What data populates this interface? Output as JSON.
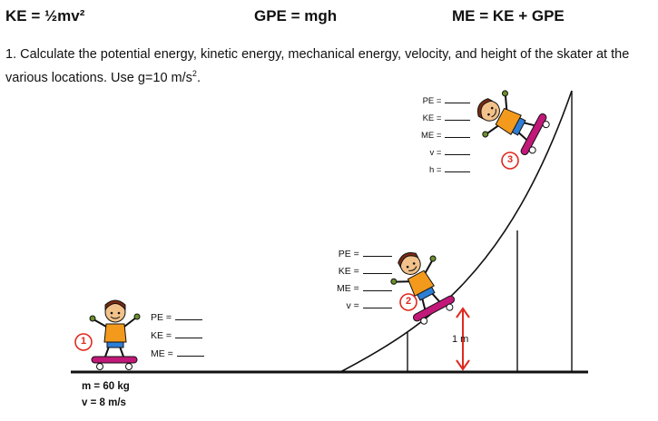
{
  "formulas": {
    "ke": "KE = ½mv²",
    "gpe": "GPE = mgh",
    "me": "ME = KE + GPE"
  },
  "question": {
    "text": "1. Calculate the potential energy, kinetic energy, mechanical energy, velocity, and height of the skater at the various locations. Use g=10 m/s².",
    "text_parts": [
      "1. Calculate the potential energy, kinetic energy, mechanical energy, velocity, and height of the skater at the various locations. Use g=10 m/s",
      "2",
      "."
    ]
  },
  "location1": {
    "number": "1",
    "labels": [
      "PE =",
      "KE =",
      "ME ="
    ],
    "mass": "m = 60 kg",
    "velocity": "v = 8 m/s"
  },
  "location2": {
    "number": "2",
    "labels": [
      "PE =",
      "KE =",
      "ME =",
      "v ="
    ],
    "height_marker": "1 m"
  },
  "location3": {
    "number": "3",
    "labels": [
      "PE =",
      "KE =",
      "ME =",
      "v =",
      "h ="
    ]
  },
  "colors": {
    "marker_red": "#e0281e",
    "board_magenta": "#c2187a",
    "shirt_orange": "#f39a1d",
    "shorts_blue": "#2d7fd6",
    "hair_brown": "#7a2a12"
  }
}
